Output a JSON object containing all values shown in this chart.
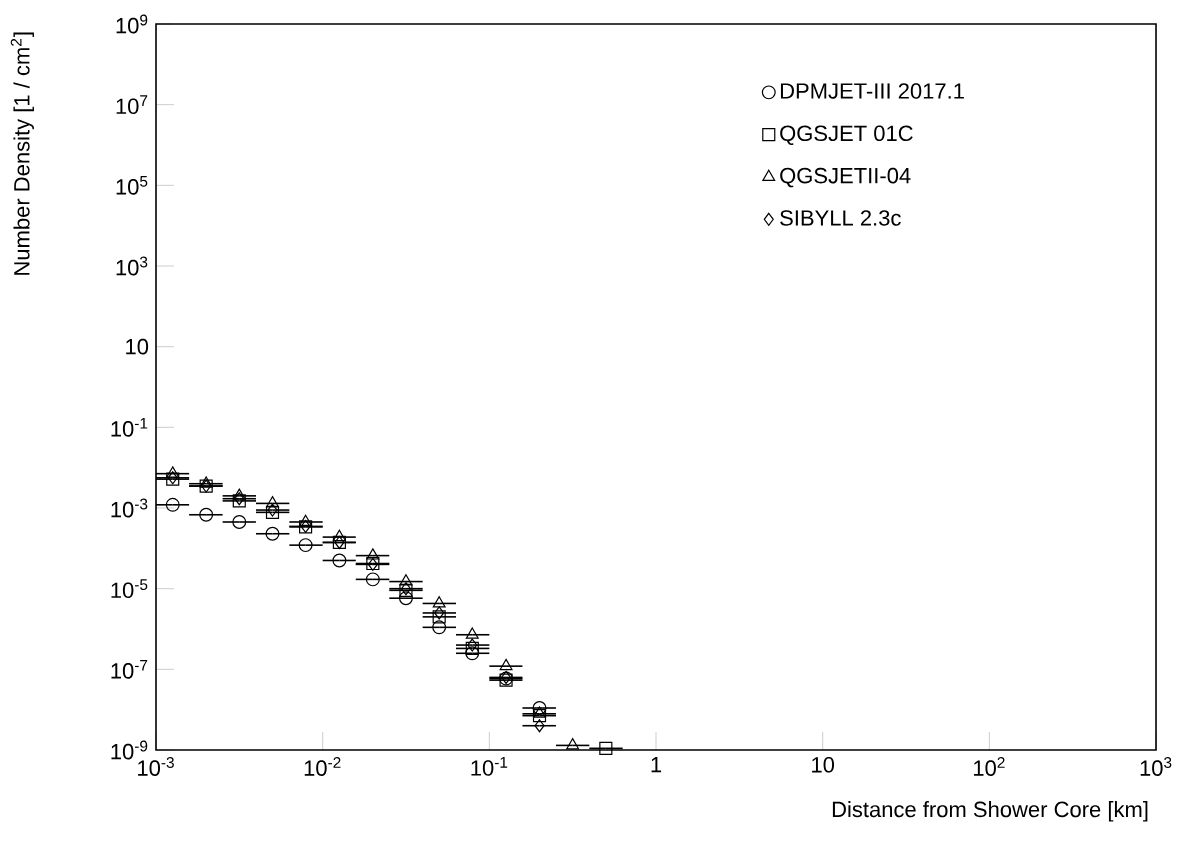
{
  "chart_data": {
    "type": "scatter",
    "xlabel": "Distance from Shower Core [km]",
    "ylabel": "Number Density [1 / cm$^{2}$]",
    "log": "xy",
    "legend": "top right",
    "grid": false,
    "xlim": [
      0.001,
      1000
    ],
    "ylim": [
      1e-09,
      1000000000.0
    ],
    "xticks": [
      {
        "value": 0.001,
        "label": "10$^{-3}$"
      },
      {
        "value": 0.01,
        "label": "10$^{-2}$"
      },
      {
        "value": 0.1,
        "label": "10$^{-1}$"
      },
      1,
      10,
      {
        "value": 100,
        "label": "10$^{2}$"
      },
      {
        "value": 1000,
        "label": "10$^{3}$"
      }
    ],
    "yticks": [
      {
        "value": 1e-09,
        "label": "10$^{-9}$"
      },
      {
        "value": 1e-07,
        "label": "10$^{-7}$"
      },
      {
        "value": 1e-05,
        "label": "10$^{-5}$"
      },
      {
        "value": 0.001,
        "label": "10$^{-3}$"
      },
      {
        "value": 0.1,
        "label": "10$^{-1}$"
      },
      10,
      {
        "value": 1000,
        "label": "10$^{3}$"
      },
      {
        "value": 100000,
        "label": "10$^{5}$"
      },
      {
        "value": 10000000,
        "label": "10$^{7}$"
      },
      {
        "value": 1000000000.0,
        "label": "10$^{9}$"
      }
    ],
    "x": [
      0.00126,
      0.002,
      0.00316,
      0.005,
      0.0079,
      0.0126,
      0.02,
      0.0316,
      0.05,
      0.079,
      0.126,
      0.2,
      0.316,
      0.5
    ],
    "series": [
      {
        "name": "DPMJET-III 2017.1",
        "color": "#000000",
        "marker": "circle",
        "values": [
          0.0012,
          0.00068,
          0.00045,
          0.00023,
          0.00012,
          5e-05,
          1.7e-05,
          5.8e-06,
          1.1e-06,
          2.5e-07,
          5.9e-08,
          1.1e-08,
          null,
          null
        ],
        "xerrors": [
          [
            0.001,
            0.00158
          ],
          [
            0.00158,
            0.00251
          ],
          [
            0.00251,
            0.00398
          ],
          [
            0.00398,
            0.00631
          ],
          [
            0.00631,
            0.01
          ],
          [
            0.01,
            0.0158
          ],
          [
            0.0158,
            0.0251
          ],
          [
            0.0251,
            0.0398
          ],
          [
            0.0398,
            0.0631
          ],
          [
            0.0631,
            0.1
          ],
          [
            0.1,
            0.158
          ],
          [
            0.158,
            0.251
          ],
          null,
          null
        ]
      },
      {
        "name": "QGSJET 01C",
        "color": "#000000",
        "marker": "square",
        "values": [
          0.0052,
          0.0035,
          0.0015,
          0.00078,
          0.00034,
          0.00014,
          4.2e-05,
          9.1e-06,
          2e-06,
          3.3e-07,
          5.4e-08,
          7.1e-09,
          null,
          1.1e-09
        ],
        "xerrors": [
          [
            0.001,
            0.00158
          ],
          [
            0.00158,
            0.00251
          ],
          [
            0.00251,
            0.00398
          ],
          [
            0.00398,
            0.00631
          ],
          [
            0.00631,
            0.01
          ],
          [
            0.01,
            0.0158
          ],
          [
            0.0158,
            0.0251
          ],
          [
            0.0251,
            0.0398
          ],
          [
            0.0398,
            0.0631
          ],
          [
            0.0631,
            0.1
          ],
          [
            0.1,
            0.158
          ],
          [
            0.158,
            0.251
          ],
          null,
          [
            0.398,
            0.631
          ]
        ]
      },
      {
        "name": "QGSJETII-04",
        "color": "#000000",
        "marker": "triangle",
        "values": [
          0.0071,
          0.004,
          0.002,
          0.0013,
          0.00045,
          0.00019,
          6.6e-05,
          1.5e-05,
          4.3e-06,
          7.2e-07,
          1.2e-07,
          7.9e-09,
          1.3e-09,
          null
        ],
        "xerrors": [
          [
            0.001,
            0.00158
          ],
          [
            0.00158,
            0.00251
          ],
          [
            0.00251,
            0.00398
          ],
          [
            0.00398,
            0.00631
          ],
          [
            0.00631,
            0.01
          ],
          [
            0.01,
            0.0158
          ],
          [
            0.0158,
            0.0251
          ],
          [
            0.0251,
            0.0398
          ],
          [
            0.0398,
            0.0631
          ],
          [
            0.0631,
            0.1
          ],
          [
            0.1,
            0.158
          ],
          [
            0.158,
            0.251
          ],
          [
            0.251,
            0.398
          ],
          null
        ]
      },
      {
        "name": "SIBYLL 2.3c",
        "color": "#000000",
        "marker": "diamond",
        "values": [
          0.0056,
          0.0035,
          0.0017,
          0.00089,
          0.00035,
          0.00014,
          4e-05,
          1e-05,
          2.5e-06,
          4e-07,
          6.3e-08,
          4e-09,
          null,
          null
        ],
        "xerrors": [
          [
            0.001,
            0.00158
          ],
          [
            0.00158,
            0.00251
          ],
          [
            0.00251,
            0.00398
          ],
          [
            0.00398,
            0.00631
          ],
          [
            0.00631,
            0.01
          ],
          [
            0.01,
            0.0158
          ],
          [
            0.0158,
            0.0251
          ],
          [
            0.0251,
            0.0398
          ],
          [
            0.0398,
            0.0631
          ],
          [
            0.0631,
            0.1
          ],
          [
            0.1,
            0.158
          ],
          [
            0.158,
            0.251
          ],
          null,
          null
        ]
      }
    ]
  }
}
